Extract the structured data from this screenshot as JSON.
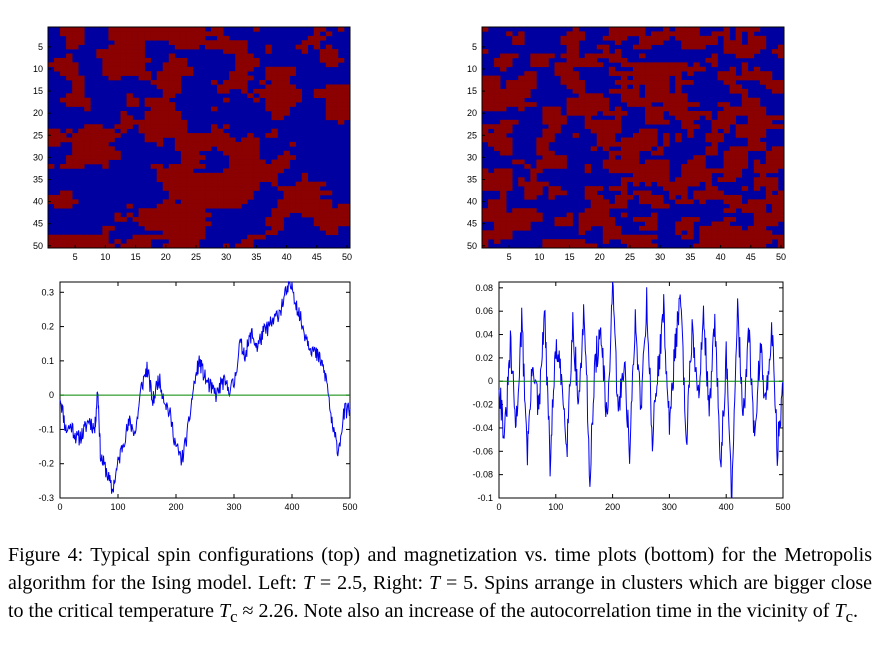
{
  "colors": {
    "spin_up": "#8b0000",
    "spin_down": "#0000a0",
    "trace": "#0000ee",
    "zero_line": "#008800"
  },
  "chart_data": [
    {
      "type": "heatmap",
      "panel": "top-left",
      "grid": "50x50 spin lattice",
      "values": [
        -1,
        1
      ],
      "xlim": [
        0,
        50
      ],
      "ylim": [
        50,
        0
      ],
      "xticks": [
        "5",
        "10",
        "15",
        "20",
        "25",
        "30",
        "35",
        "40",
        "45",
        "50"
      ],
      "yticks": [
        "5",
        "10",
        "15",
        "20",
        "25",
        "30",
        "35",
        "40",
        "45",
        "50"
      ]
    },
    {
      "type": "heatmap",
      "panel": "top-right",
      "grid": "50x50 spin lattice",
      "values": [
        -1,
        1
      ],
      "xlim": [
        0,
        50
      ],
      "ylim": [
        50,
        0
      ],
      "xticks": [
        "5",
        "10",
        "15",
        "20",
        "25",
        "30",
        "35",
        "40",
        "45",
        "50"
      ],
      "yticks": [
        "5",
        "10",
        "15",
        "20",
        "25",
        "30",
        "35",
        "40",
        "45",
        "50"
      ]
    },
    {
      "type": "line",
      "panel": "bottom-left",
      "xlim": [
        0,
        500
      ],
      "ylim": [
        -0.3,
        0.33
      ],
      "xticks": [
        "0",
        "100",
        "200",
        "300",
        "400",
        "500"
      ],
      "yticks": [
        "0.3",
        "0.2",
        "0.1",
        "0",
        "-0.1",
        "-0.2",
        "-0.3"
      ],
      "reference_line": 0,
      "x": [
        0,
        10,
        20,
        30,
        40,
        50,
        60,
        65,
        70,
        80,
        90,
        100,
        110,
        120,
        130,
        140,
        150,
        160,
        170,
        180,
        190,
        200,
        210,
        220,
        230,
        240,
        250,
        260,
        270,
        280,
        290,
        300,
        310,
        320,
        330,
        340,
        350,
        360,
        370,
        380,
        390,
        400,
        410,
        420,
        430,
        440,
        450,
        460,
        470,
        480,
        490,
        500
      ],
      "y": [
        0.0,
        -0.1,
        -0.09,
        -0.13,
        -0.11,
        -0.07,
        -0.1,
        0.02,
        -0.18,
        -0.22,
        -0.28,
        -0.2,
        -0.13,
        -0.08,
        -0.11,
        0.02,
        0.08,
        -0.02,
        0.05,
        -0.01,
        -0.06,
        -0.15,
        -0.19,
        -0.11,
        0.02,
        0.1,
        0.05,
        0.02,
        0.0,
        0.04,
        0.02,
        0.03,
        0.15,
        0.12,
        0.18,
        0.14,
        0.18,
        0.2,
        0.22,
        0.25,
        0.3,
        0.32,
        0.25,
        0.19,
        0.15,
        0.12,
        0.1,
        0.04,
        -0.1,
        -0.16,
        -0.05,
        -0.04
      ]
    },
    {
      "type": "line",
      "panel": "bottom-right",
      "xlim": [
        0,
        500
      ],
      "ylim": [
        -0.1,
        0.085
      ],
      "xticks": [
        "0",
        "100",
        "200",
        "300",
        "400",
        "500"
      ],
      "yticks": [
        "0.08",
        "0.06",
        "0.04",
        "0.02",
        "0",
        "-0.02",
        "-0.04",
        "-0.06",
        "-0.08",
        "-0.1"
      ],
      "reference_line": 0,
      "x": [
        0,
        10,
        20,
        30,
        40,
        50,
        60,
        70,
        80,
        90,
        100,
        110,
        120,
        130,
        140,
        150,
        160,
        170,
        180,
        190,
        200,
        210,
        220,
        230,
        240,
        250,
        260,
        270,
        280,
        290,
        300,
        310,
        320,
        330,
        340,
        350,
        360,
        370,
        380,
        390,
        400,
        410,
        420,
        430,
        440,
        450,
        460,
        470,
        480,
        490,
        500
      ],
      "y": [
        0.0,
        -0.05,
        0.03,
        -0.04,
        0.05,
        -0.06,
        0.02,
        -0.03,
        0.06,
        -0.07,
        0.03,
        0.0,
        -0.05,
        0.05,
        -0.02,
        0.06,
        -0.08,
        0.02,
        0.04,
        -0.04,
        0.08,
        -0.03,
        0.02,
        -0.06,
        0.05,
        -0.02,
        0.07,
        -0.05,
        0.01,
        0.06,
        -0.04,
        0.03,
        0.07,
        -0.06,
        0.05,
        -0.02,
        0.06,
        -0.03,
        0.05,
        -0.07,
        0.02,
        -0.1,
        0.06,
        -0.03,
        0.04,
        -0.05,
        0.03,
        -0.02,
        0.05,
        -0.06,
        0.0
      ]
    }
  ],
  "caption": {
    "figure_label": "Figure 4:",
    "t1": " Typical spin configurations (top) and magnetization vs. time plots (bottom) for the Metropolis algorithm for the Ising model. Left: ",
    "var_T": "T",
    "t2": " = 2.5, Right: ",
    "var_T2": "T",
    "t3": " = 5. Spins arrange in clusters which are bigger close to the critical temperature ",
    "var_Tc": "T",
    "sub_c": "c",
    "t4": " ≈ 2.26. Note also an increase of the autocorrelation time in the vicinity of ",
    "var_Tc2": "T",
    "sub_c2": "c",
    "t5": "."
  }
}
